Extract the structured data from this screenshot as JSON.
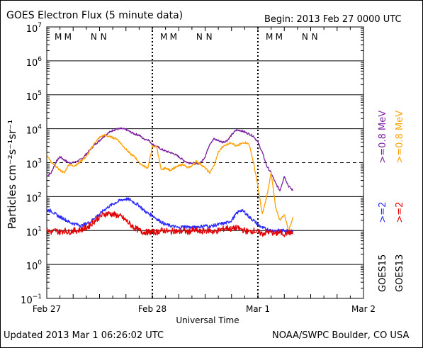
{
  "header": {
    "title": "GOES Electron Flux (5 minute data)",
    "begin": "Begin: 2013 Feb 27 0000 UTC"
  },
  "footer": {
    "updated": "Updated 2013 Mar  1 06:26:02 UTC",
    "source": "NOAA/SWPC Boulder, CO USA"
  },
  "chart_data": {
    "type": "line",
    "title": "GOES Electron Flux (5 minute data)",
    "xlabel": "Universal Time",
    "ylabel": "Particles cm⁻²s⁻¹sr⁻¹",
    "yscale": "log",
    "ylim": [
      0.1,
      10000000
    ],
    "xlim": [
      0,
      72
    ],
    "x_unit": "hours since 2013 Feb 27 0000 UTC",
    "x_ticks": [
      {
        "x": 0,
        "label": "Feb 27"
      },
      {
        "x": 24,
        "label": "Feb 28"
      },
      {
        "x": 48,
        "label": "Mar 1"
      },
      {
        "x": 72,
        "label": "Mar 2"
      }
    ],
    "y_ticks": [
      {
        "exp": 7
      },
      {
        "exp": 6
      },
      {
        "exp": 5
      },
      {
        "exp": 4
      },
      {
        "exp": 3
      },
      {
        "exp": 2
      },
      {
        "exp": 1
      },
      {
        "exp": 0
      },
      {
        "exp": -1
      }
    ],
    "threshold": {
      "value": 1000,
      "style": "dashed"
    },
    "grid": true,
    "markers": [
      {
        "x": 2.6,
        "label": "M",
        "color": "#e00000"
      },
      {
        "x": 4.8,
        "label": "M",
        "color": "#2a2aff"
      },
      {
        "x": 10.7,
        "label": "N",
        "color": "#e00000"
      },
      {
        "x": 12.9,
        "label": "N",
        "color": "#2a2aff"
      },
      {
        "x": 26.6,
        "label": "M",
        "color": "#e00000"
      },
      {
        "x": 28.8,
        "label": "M",
        "color": "#2a2aff"
      },
      {
        "x": 34.7,
        "label": "N",
        "color": "#e00000"
      },
      {
        "x": 36.9,
        "label": "N",
        "color": "#2a2aff"
      },
      {
        "x": 50.6,
        "label": "M",
        "color": "#e00000"
      },
      {
        "x": 52.8,
        "label": "M",
        "color": "#2a2aff"
      },
      {
        "x": 58.7,
        "label": "N",
        "color": "#e00000"
      },
      {
        "x": 60.9,
        "label": "N",
        "color": "#2a2aff"
      }
    ],
    "legend": [
      {
        "text": "GOES15",
        "color": "#000000"
      },
      {
        "text": ">=2",
        "color": "#2a2aff"
      },
      {
        "text": ">=0.8 MeV",
        "color": "#7a1fa0"
      },
      {
        "text": "GOES13",
        "color": "#000000"
      },
      {
        "text": ">=2",
        "color": "#e00000"
      },
      {
        "text": ">=0.8 MeV",
        "color": "#ffa000"
      }
    ],
    "series": [
      {
        "color": "#7a1fa0",
        "x": [
          0,
          1,
          2,
          3,
          4,
          5,
          6,
          7,
          8,
          9,
          10,
          11,
          12,
          13,
          14,
          15,
          16,
          17,
          18,
          19,
          20,
          21,
          22,
          23,
          24,
          25,
          26,
          27,
          28,
          29,
          30,
          31,
          32,
          33,
          34,
          35,
          36,
          37,
          38,
          39,
          40,
          41,
          42,
          43,
          44,
          45,
          46,
          47,
          48,
          49,
          50,
          51,
          52,
          53,
          54,
          55,
          56
        ],
        "y": [
          400,
          500,
          1000,
          1500,
          1200,
          1000,
          1000,
          1100,
          1300,
          1800,
          2500,
          3500,
          4500,
          6000,
          7500,
          9000,
          9800,
          10000,
          9500,
          8000,
          7000,
          6500,
          5000,
          4800,
          3500,
          3000,
          2500,
          2200,
          2000,
          1800,
          1500,
          1200,
          1000,
          1000,
          900,
          1000,
          1500,
          3500,
          5000,
          4500,
          4000,
          4500,
          6500,
          9000,
          9000,
          8000,
          7000,
          6000,
          4000,
          2000,
          800,
          500,
          250,
          150,
          400,
          200,
          150
        ]
      },
      {
        "color": "#ffa000",
        "x": [
          0,
          1,
          2,
          3,
          4,
          5,
          6,
          7,
          8,
          9,
          10,
          11,
          12,
          13,
          14,
          15,
          16,
          17,
          18,
          19,
          20,
          21,
          22,
          23,
          24,
          25,
          26,
          27,
          28,
          29,
          30,
          31,
          32,
          33,
          34,
          35,
          36,
          37,
          38,
          39,
          40,
          41,
          42,
          43,
          44,
          45,
          46,
          47,
          48,
          49,
          50,
          51,
          52,
          53,
          54,
          55,
          56
        ],
        "y": [
          1800,
          1000,
          800,
          600,
          500,
          900,
          800,
          900,
          1200,
          1500,
          2500,
          4000,
          5500,
          6500,
          6000,
          5500,
          5000,
          3500,
          2500,
          1800,
          1500,
          1000,
          800,
          700,
          3000,
          3000,
          600,
          700,
          600,
          700,
          800,
          900,
          700,
          800,
          1100,
          900,
          700,
          500,
          800,
          2000,
          3000,
          3500,
          4000,
          3000,
          3500,
          4000,
          3500,
          1000,
          200,
          30,
          100,
          500,
          50,
          20,
          30,
          10,
          25
        ]
      },
      {
        "color": "#2a2aff",
        "x": [
          0,
          1,
          2,
          3,
          4,
          5,
          6,
          7,
          8,
          9,
          10,
          11,
          12,
          13,
          14,
          15,
          16,
          17,
          18,
          19,
          20,
          21,
          22,
          23,
          24,
          25,
          26,
          27,
          28,
          29,
          30,
          31,
          32,
          33,
          34,
          35,
          36,
          37,
          38,
          39,
          40,
          41,
          42,
          43,
          44,
          45,
          46,
          47,
          48,
          49,
          50,
          51,
          52,
          53,
          54,
          55,
          56
        ],
        "y": [
          40,
          38,
          30,
          25,
          22,
          18,
          16,
          15,
          14,
          16,
          18,
          25,
          30,
          40,
          50,
          60,
          70,
          80,
          85,
          80,
          65,
          55,
          40,
          32,
          28,
          22,
          18,
          15,
          14,
          13,
          12,
          13,
          13,
          12,
          13,
          13,
          14,
          13,
          14,
          15,
          16,
          17,
          20,
          30,
          40,
          35,
          25,
          20,
          15,
          12,
          11,
          10,
          10,
          10,
          10,
          10,
          10
        ]
      },
      {
        "color": "#e00000",
        "x": [
          0,
          1,
          2,
          3,
          4,
          5,
          6,
          7,
          8,
          9,
          10,
          11,
          12,
          13,
          14,
          15,
          16,
          17,
          18,
          19,
          20,
          21,
          22,
          23,
          24,
          25,
          26,
          27,
          28,
          29,
          30,
          31,
          32,
          33,
          34,
          35,
          36,
          37,
          38,
          39,
          40,
          41,
          42,
          43,
          44,
          45,
          46,
          47,
          48,
          49,
          50,
          51,
          52,
          53,
          54,
          55,
          56
        ],
        "y": [
          10,
          9,
          10,
          9,
          10,
          9,
          10,
          10,
          11,
          12,
          15,
          20,
          25,
          30,
          32,
          30,
          28,
          25,
          20,
          15,
          12,
          10,
          9,
          9,
          9,
          9,
          10,
          10,
          9,
          10,
          9,
          10,
          9,
          10,
          10,
          9,
          10,
          10,
          9,
          10,
          11,
          12,
          11,
          12,
          11,
          10,
          9,
          10,
          9,
          8,
          9,
          9,
          8,
          9,
          8,
          9,
          8
        ]
      }
    ]
  }
}
